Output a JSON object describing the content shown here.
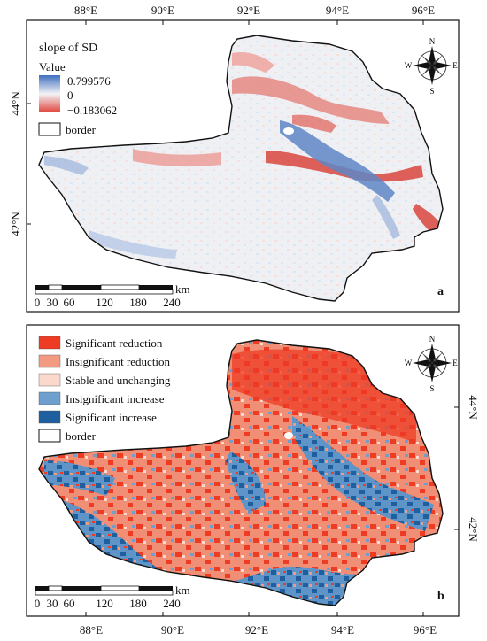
{
  "axes": {
    "top_ticks": [
      "88°E",
      "90°E",
      "92°E",
      "94°E",
      "96°E"
    ],
    "bottom_ticks": [
      "88°E",
      "90°E",
      "92°E",
      "94°E",
      "96°E"
    ],
    "panel_a_lat_ticks": [
      "44°N",
      "42°N"
    ],
    "panel_b_lat_ticks": [
      "44°N",
      "42°N"
    ]
  },
  "panel_a": {
    "letter": "a",
    "legend": {
      "title": "slope of SD",
      "value_label": "Value",
      "max": "0.799576",
      "mid": "0",
      "min": "−0.183062",
      "border_label": "border"
    },
    "colors": {
      "high": "#3f6fc0",
      "mid": "#f2f3f6",
      "low": "#e0443b"
    }
  },
  "panel_b": {
    "letter": "b",
    "legend": [
      {
        "label": "Significant reduction",
        "color": "#ee3b24"
      },
      {
        "label": "Insignificant reduction",
        "color": "#f39a83"
      },
      {
        "label": "Stable and unchanging",
        "color": "#fbd8cc"
      },
      {
        "label": "Insignificant increase",
        "color": "#6e9fcf"
      },
      {
        "label": "Significant increase",
        "color": "#1e5f9f"
      },
      {
        "label": "border",
        "color": "#ffffff"
      }
    ]
  },
  "scalebar": {
    "unit": "km",
    "labels": [
      "0",
      "30",
      "60",
      "120",
      "180",
      "240"
    ]
  },
  "compass": {
    "n": "N",
    "s": "S",
    "e": "E",
    "w": "W"
  }
}
